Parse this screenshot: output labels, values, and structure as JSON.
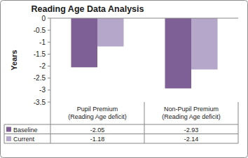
{
  "chart_data": {
    "type": "bar",
    "title": "Reading Age Data Analysis",
    "y_label": "Years",
    "categories": [
      "Pupil Premium (Reading Age deficit)",
      "Non-Pupil Premium (Reading Age deficit)"
    ],
    "series": [
      {
        "name": "Baseline",
        "color": "#7f6096",
        "values": [
          -2.05,
          -2.93
        ]
      },
      {
        "name": "Current",
        "color": "#b4a7c9",
        "values": [
          -1.18,
          -2.14
        ]
      }
    ],
    "ylim": [
      -3.5,
      0
    ],
    "yticks": [
      -3.5,
      -3,
      -2.5,
      -2,
      -1.5,
      -1,
      -0.5,
      0
    ],
    "grid": false
  }
}
